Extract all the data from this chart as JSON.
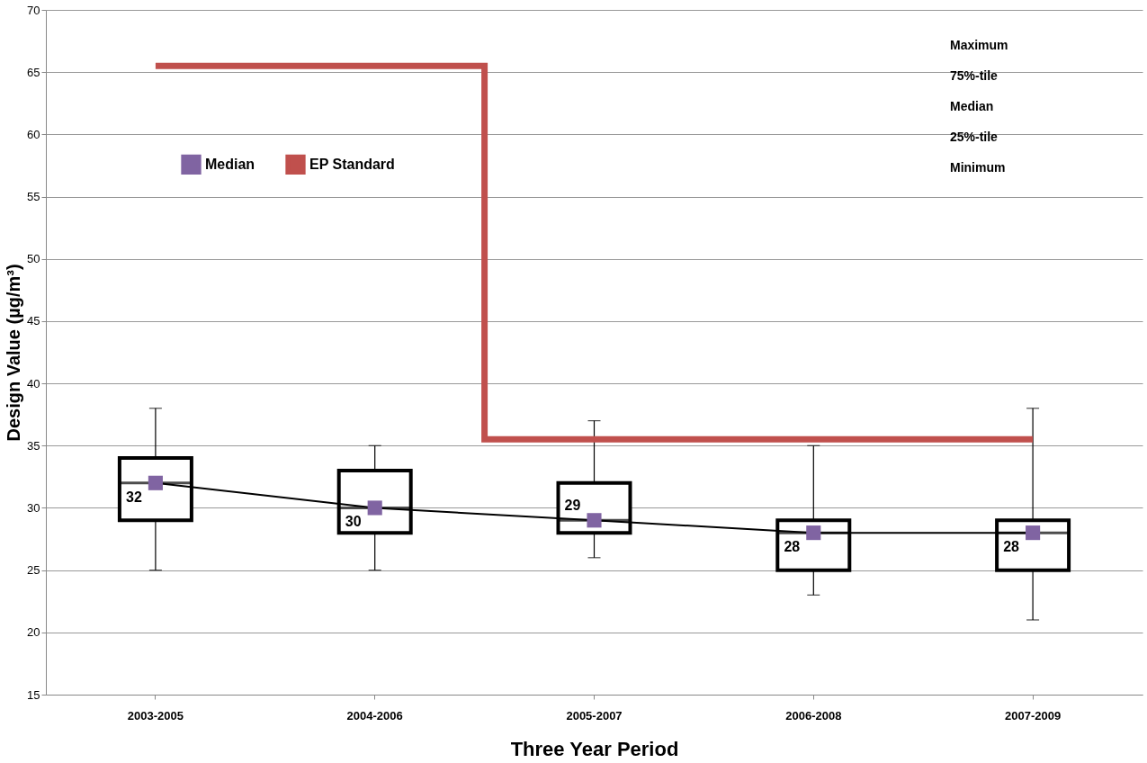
{
  "chart_data": {
    "type": "box",
    "categories": [
      "2003-2005",
      "2004-2006",
      "2005-2007",
      "2006-2008",
      "2007-2009"
    ],
    "boxes": [
      {
        "low": 25,
        "q1": 29,
        "median": 32,
        "q3": 34,
        "high": 38
      },
      {
        "low": 25,
        "q1": 28,
        "median": 30,
        "q3": 33,
        "high": 35
      },
      {
        "low": 26,
        "q1": 28,
        "median": 29,
        "q3": 32,
        "high": 37
      },
      {
        "low": 23,
        "q1": 25,
        "median": 28,
        "q3": 29,
        "high": 35
      },
      {
        "low": 21,
        "q1": 25,
        "median": 28,
        "q3": 29,
        "high": 38
      }
    ],
    "series": [
      {
        "name": "Median",
        "type": "line",
        "color": "#8064a2",
        "marker": "square",
        "values": [
          32,
          30,
          29,
          28,
          28
        ],
        "data_labels": true
      },
      {
        "name": "EP Standard",
        "type": "step",
        "color": "#c0504d",
        "values": [
          65.5,
          65.5,
          35.5,
          35.5,
          35.5
        ]
      }
    ],
    "xlabel": "Three Year Period",
    "ylabel": "Design Value (µg/m³)",
    "ylim": [
      15,
      70
    ],
    "yticks": [
      15,
      20,
      25,
      30,
      35,
      40,
      45,
      50,
      55,
      60,
      65,
      70
    ],
    "grid": "y",
    "legend": "top left",
    "annotations": [
      "Maximum",
      "75%-tile",
      "Median",
      "25%-tile",
      "Minimum"
    ]
  }
}
